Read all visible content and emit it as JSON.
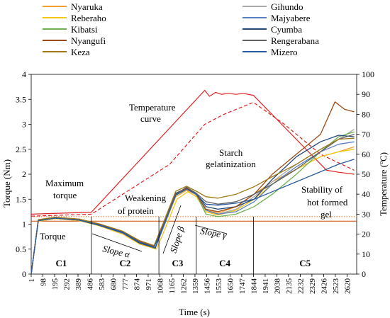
{
  "chart_data": {
    "type": "line",
    "title": "",
    "xlabel": "Time (s)",
    "ylabel_left": "Torque (Nm)",
    "ylabel_right": "Temperature (ºC)",
    "ylim_left": [
      0,
      4
    ],
    "ylim_right": [
      0,
      100
    ],
    "xlim": [
      1,
      2700
    ],
    "x_ticks": [
      "1",
      "98",
      "195",
      "292",
      "389",
      "486",
      "583",
      "680",
      "777",
      "874",
      "971",
      "1068",
      "1165",
      "1262",
      "1359",
      "1456",
      "1553",
      "1650",
      "1747",
      "1844",
      "1941",
      "2038",
      "2135",
      "2232",
      "2329",
      "2426",
      "2523",
      "2620"
    ],
    "y_left_ticks": [
      "0",
      "0.5",
      "1",
      "1.5",
      "2",
      "2.5",
      "3",
      "3.5",
      "4"
    ],
    "y_right_ticks": [
      "0",
      "10",
      "20",
      "30",
      "40",
      "50",
      "60",
      "70",
      "80",
      "90",
      "100"
    ],
    "legend": [
      {
        "name": "Nyaruka",
        "color": "#f0a030"
      },
      {
        "name": "Gihundo",
        "color": "#a8a8a8"
      },
      {
        "name": "Reberaho",
        "color": "#f5c518"
      },
      {
        "name": "Majyabere",
        "color": "#5a7fc0"
      },
      {
        "name": "Kibatsi",
        "color": "#70b050"
      },
      {
        "name": "Cyumba",
        "color": "#24477a"
      },
      {
        "name": "Nyangufi",
        "color": "#9c4a14"
      },
      {
        "name": "Rengerabana",
        "color": "#606060"
      },
      {
        "name": "Keza",
        "color": "#a07818"
      },
      {
        "name": "Mizero",
        "color": "#2a5aa0"
      }
    ],
    "series": [
      {
        "name": "Nyaruka",
        "color": "#f0a030",
        "points": [
          [
            1,
            0
          ],
          [
            60,
            1.07
          ],
          [
            200,
            1.12
          ],
          [
            400,
            1.09
          ],
          [
            560,
            1.0
          ],
          [
            760,
            0.85
          ],
          [
            900,
            0.65
          ],
          [
            1020,
            0.55
          ],
          [
            1100,
            0.95
          ],
          [
            1200,
            1.55
          ],
          [
            1290,
            1.68
          ],
          [
            1360,
            1.6
          ],
          [
            1450,
            1.3
          ],
          [
            1550,
            1.22
          ],
          [
            1700,
            1.35
          ],
          [
            1850,
            1.6
          ],
          [
            2000,
            1.85
          ],
          [
            2200,
            2.1
          ],
          [
            2400,
            2.35
          ],
          [
            2550,
            2.45
          ],
          [
            2680,
            2.55
          ]
        ]
      },
      {
        "name": "Gihundo",
        "color": "#a8a8a8",
        "points": [
          [
            1,
            0
          ],
          [
            60,
            1.08
          ],
          [
            200,
            1.12
          ],
          [
            400,
            1.08
          ],
          [
            560,
            0.98
          ],
          [
            760,
            0.82
          ],
          [
            900,
            0.62
          ],
          [
            1030,
            0.52
          ],
          [
            1100,
            0.95
          ],
          [
            1200,
            1.58
          ],
          [
            1290,
            1.7
          ],
          [
            1370,
            1.58
          ],
          [
            1450,
            1.25
          ],
          [
            1550,
            1.2
          ],
          [
            1700,
            1.3
          ],
          [
            1850,
            1.55
          ],
          [
            2000,
            1.85
          ],
          [
            2200,
            2.2
          ],
          [
            2400,
            2.5
          ],
          [
            2550,
            2.7
          ],
          [
            2680,
            2.9
          ]
        ]
      },
      {
        "name": "Reberaho",
        "color": "#f5c518",
        "points": [
          [
            1,
            0
          ],
          [
            60,
            1.06
          ],
          [
            200,
            1.11
          ],
          [
            400,
            1.07
          ],
          [
            560,
            0.97
          ],
          [
            760,
            0.8
          ],
          [
            900,
            0.6
          ],
          [
            1040,
            0.5
          ],
          [
            1110,
            0.9
          ],
          [
            1210,
            1.5
          ],
          [
            1300,
            1.65
          ],
          [
            1370,
            1.55
          ],
          [
            1450,
            1.25
          ],
          [
            1550,
            1.18
          ],
          [
            1700,
            1.28
          ],
          [
            1850,
            1.5
          ],
          [
            2000,
            1.8
          ],
          [
            2200,
            2.1
          ],
          [
            2400,
            2.35
          ],
          [
            2550,
            2.45
          ],
          [
            2680,
            2.5
          ]
        ]
      },
      {
        "name": "Majyabere",
        "color": "#5a7fc0",
        "points": [
          [
            1,
            0
          ],
          [
            60,
            1.07
          ],
          [
            200,
            1.12
          ],
          [
            400,
            1.08
          ],
          [
            560,
            0.98
          ],
          [
            760,
            0.82
          ],
          [
            900,
            0.62
          ],
          [
            1030,
            0.52
          ],
          [
            1100,
            0.95
          ],
          [
            1200,
            1.6
          ],
          [
            1290,
            1.72
          ],
          [
            1370,
            1.6
          ],
          [
            1450,
            1.28
          ],
          [
            1550,
            1.2
          ],
          [
            1700,
            1.25
          ],
          [
            1850,
            1.45
          ],
          [
            2000,
            1.8
          ],
          [
            2200,
            2.15
          ],
          [
            2400,
            2.45
          ],
          [
            2550,
            2.6
          ],
          [
            2680,
            2.65
          ]
        ]
      },
      {
        "name": "Kibatsi",
        "color": "#70b050",
        "points": [
          [
            1,
            0
          ],
          [
            60,
            1.08
          ],
          [
            200,
            1.13
          ],
          [
            400,
            1.09
          ],
          [
            560,
            1.0
          ],
          [
            760,
            0.84
          ],
          [
            900,
            0.64
          ],
          [
            1020,
            0.54
          ],
          [
            1100,
            0.98
          ],
          [
            1200,
            1.62
          ],
          [
            1290,
            1.72
          ],
          [
            1370,
            1.6
          ],
          [
            1450,
            1.2
          ],
          [
            1550,
            1.15
          ],
          [
            1700,
            1.2
          ],
          [
            1850,
            1.35
          ],
          [
            2000,
            1.6
          ],
          [
            2200,
            2.0
          ],
          [
            2400,
            2.45
          ],
          [
            2550,
            2.75
          ],
          [
            2680,
            2.85
          ]
        ]
      },
      {
        "name": "Cyumba",
        "color": "#24477a",
        "points": [
          [
            1,
            0
          ],
          [
            60,
            1.07
          ],
          [
            200,
            1.12
          ],
          [
            400,
            1.08
          ],
          [
            560,
            0.98
          ],
          [
            760,
            0.83
          ],
          [
            900,
            0.62
          ],
          [
            1030,
            0.52
          ],
          [
            1100,
            1.0
          ],
          [
            1200,
            1.62
          ],
          [
            1290,
            1.72
          ],
          [
            1370,
            1.62
          ],
          [
            1450,
            1.35
          ],
          [
            1550,
            1.3
          ],
          [
            1700,
            1.35
          ],
          [
            1850,
            1.5
          ],
          [
            2000,
            1.9
          ],
          [
            2200,
            2.35
          ],
          [
            2400,
            2.65
          ],
          [
            2550,
            2.78
          ],
          [
            2680,
            2.75
          ]
        ]
      },
      {
        "name": "Nyangufi",
        "color": "#9c4a14",
        "points": [
          [
            1,
            0
          ],
          [
            60,
            1.09
          ],
          [
            200,
            1.13
          ],
          [
            400,
            1.1
          ],
          [
            560,
            1.0
          ],
          [
            760,
            0.85
          ],
          [
            900,
            0.66
          ],
          [
            1020,
            0.56
          ],
          [
            1100,
            1.0
          ],
          [
            1200,
            1.6
          ],
          [
            1290,
            1.72
          ],
          [
            1370,
            1.6
          ],
          [
            1450,
            1.3
          ],
          [
            1550,
            1.25
          ],
          [
            1700,
            1.35
          ],
          [
            1850,
            1.6
          ],
          [
            2000,
            2.0
          ],
          [
            2200,
            2.4
          ],
          [
            2400,
            2.8
          ],
          [
            2520,
            3.45
          ],
          [
            2600,
            3.3
          ],
          [
            2680,
            3.25
          ]
        ]
      },
      {
        "name": "Rengerabana",
        "color": "#606060",
        "points": [
          [
            1,
            0
          ],
          [
            60,
            1.08
          ],
          [
            200,
            1.12
          ],
          [
            400,
            1.09
          ],
          [
            560,
            0.99
          ],
          [
            760,
            0.84
          ],
          [
            900,
            0.64
          ],
          [
            1020,
            0.54
          ],
          [
            1100,
            1.0
          ],
          [
            1200,
            1.6
          ],
          [
            1290,
            1.74
          ],
          [
            1370,
            1.62
          ],
          [
            1450,
            1.45
          ],
          [
            1550,
            1.4
          ],
          [
            1700,
            1.45
          ],
          [
            1850,
            1.6
          ],
          [
            2000,
            1.8
          ],
          [
            2200,
            2.1
          ],
          [
            2400,
            2.45
          ],
          [
            2550,
            2.7
          ],
          [
            2680,
            2.8
          ]
        ]
      },
      {
        "name": "Keza",
        "color": "#a07818",
        "points": [
          [
            1,
            0
          ],
          [
            60,
            1.09
          ],
          [
            200,
            1.14
          ],
          [
            400,
            1.1
          ],
          [
            560,
            1.01
          ],
          [
            760,
            0.86
          ],
          [
            900,
            0.67
          ],
          [
            1020,
            0.57
          ],
          [
            1100,
            1.05
          ],
          [
            1200,
            1.66
          ],
          [
            1290,
            1.76
          ],
          [
            1370,
            1.66
          ],
          [
            1450,
            1.55
          ],
          [
            1550,
            1.52
          ],
          [
            1700,
            1.6
          ],
          [
            1850,
            1.75
          ],
          [
            2000,
            1.95
          ],
          [
            2200,
            2.2
          ],
          [
            2400,
            2.5
          ],
          [
            2550,
            2.7
          ],
          [
            2680,
            2.72
          ]
        ]
      },
      {
        "name": "Mizero",
        "color": "#2a5aa0",
        "points": [
          [
            1,
            0
          ],
          [
            60,
            1.07
          ],
          [
            200,
            1.12
          ],
          [
            400,
            1.08
          ],
          [
            560,
            0.99
          ],
          [
            760,
            0.84
          ],
          [
            900,
            0.64
          ],
          [
            1020,
            0.54
          ],
          [
            1100,
            0.98
          ],
          [
            1200,
            1.58
          ],
          [
            1290,
            1.7
          ],
          [
            1370,
            1.6
          ],
          [
            1450,
            1.4
          ],
          [
            1550,
            1.38
          ],
          [
            1700,
            1.42
          ],
          [
            1850,
            1.5
          ],
          [
            2000,
            1.65
          ],
          [
            2200,
            1.85
          ],
          [
            2400,
            2.05
          ],
          [
            2550,
            2.2
          ],
          [
            2680,
            2.3
          ]
        ]
      }
    ],
    "temperature_series": [
      {
        "style": "solid",
        "color": "#e02020",
        "axis": "right",
        "points": [
          [
            1,
            30
          ],
          [
            500,
            31
          ],
          [
            1440,
            92
          ],
          [
            1480,
            89
          ],
          [
            1530,
            91
          ],
          [
            1580,
            90
          ],
          [
            1630,
            90.5
          ],
          [
            1700,
            90
          ],
          [
            1760,
            90.5
          ],
          [
            1844,
            89.5
          ],
          [
            2450,
            52
          ],
          [
            2550,
            51
          ],
          [
            2680,
            50
          ]
        ]
      },
      {
        "style": "dashed",
        "color": "#e02020",
        "axis": "right",
        "points": [
          [
            1,
            29
          ],
          [
            500,
            30
          ],
          [
            1150,
            55
          ],
          [
            1440,
            75
          ],
          [
            1600,
            80
          ],
          [
            1844,
            86
          ],
          [
            2100,
            75
          ],
          [
            2400,
            60
          ],
          [
            2680,
            52
          ]
        ]
      }
    ],
    "reference_lines": [
      {
        "y": 1.15,
        "color": "#e07020",
        "style": "dotted"
      },
      {
        "y": 1.06,
        "color": "#c84a00",
        "style": "solid"
      }
    ],
    "phase_boundaries": [
      500,
      1060,
      1370,
      1844
    ],
    "phases": [
      "C1",
      "C2",
      "C3",
      "C4",
      "C5"
    ],
    "annotations": {
      "torque": "Torque",
      "max_torque_1": "Maximum",
      "max_torque_2": "torque",
      "weakening_1": "Weakening",
      "weakening_2": "of protein",
      "temperature_1": "Temperature",
      "temperature_2": "curve",
      "starch_1": "Starch",
      "starch_2": "gelatinization",
      "stability_1": "Stability of",
      "stability_2": "hot formed",
      "stability_3": "gel",
      "slope_alpha": "Slope α",
      "slope_beta": "Slope β",
      "slope_gamma": "Slope γ"
    }
  }
}
